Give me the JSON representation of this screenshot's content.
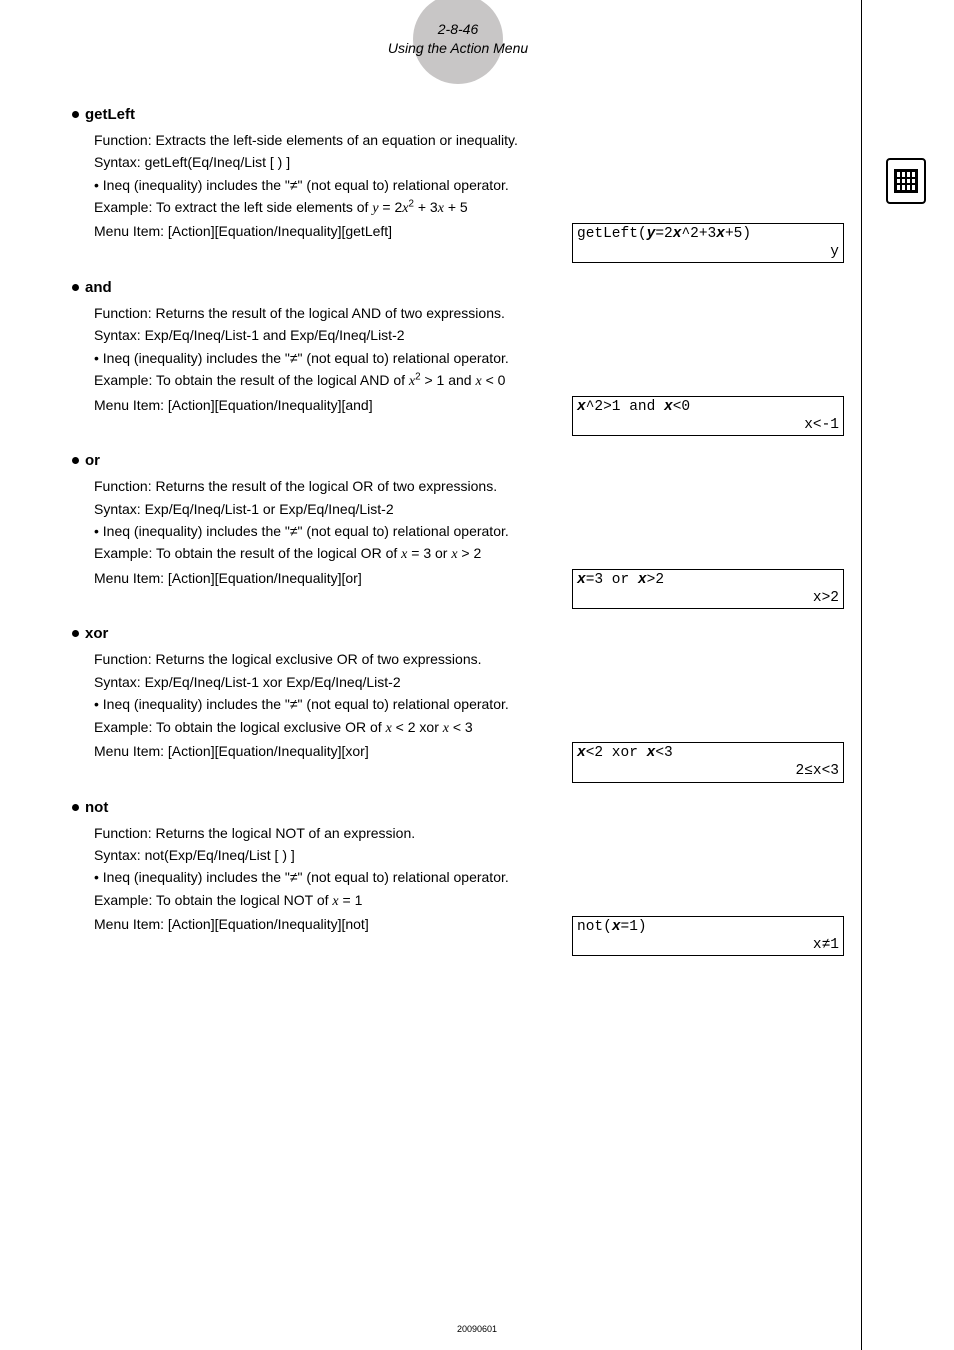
{
  "header": {
    "page_ref": "2-8-46",
    "subtitle": "Using the Action Menu"
  },
  "sections": [
    {
      "name": "getLeft",
      "function_line": "Function: Extracts the left-side elements of an equation or inequality.",
      "syntax_line": "Syntax: getLeft(Eq/Ineq/List [ ) ]",
      "note_line": "• Ineq (inequality) includes the \"≠\" (not equal to) relational operator.",
      "example_html": "Example: To extract the left side elements of <span class='italic'>y</span> = 2<span class='italic'>x</span><span class='sup'>2</span> + 3<span class='italic'>x</span> + 5",
      "menu_line": "Menu Item: [Action][Equation/Inequality][getLeft]",
      "calc_input_html": "getLeft(<span class='bold-x'>y</span>=2<span class='bold-x'>x</span>^2+3<span class='bold-x'>x</span>+5)",
      "calc_output": "y"
    },
    {
      "name": "and",
      "function_line": "Function: Returns the result of the logical AND of two expressions.",
      "syntax_line": "Syntax: Exp/Eq/Ineq/List-1 and Exp/Eq/Ineq/List-2",
      "note_line": "• Ineq (inequality) includes the \"≠\" (not equal to) relational operator.",
      "example_html": "Example: To obtain the result of the logical AND of <span class='italic'>x</span><span class='sup'>2</span> > 1 and <span class='italic'>x</span> < 0",
      "menu_line": "Menu Item: [Action][Equation/Inequality][and]",
      "calc_input_html": "<span class='bold-x'>x</span>^2&gt;1 and <span class='bold-x'>x</span>&lt;0",
      "calc_output": "x<-1"
    },
    {
      "name": "or",
      "function_line": "Function: Returns the result of the logical OR of two expressions.",
      "syntax_line": "Syntax: Exp/Eq/Ineq/List-1 or Exp/Eq/Ineq/List-2",
      "note_line": "• Ineq (inequality) includes the \"≠\" (not equal to) relational operator.",
      "example_html": "Example: To obtain the result of the logical OR of <span class='italic'>x</span> = 3 or <span class='italic'>x</span> > 2",
      "menu_line": "Menu Item:  [Action][Equation/Inequality][or]",
      "calc_input_html": "<span class='bold-x'>x</span>=3 or <span class='bold-x'>x</span>&gt;2",
      "calc_output": "x>2"
    },
    {
      "name": "xor",
      "function_line": "Function: Returns the logical exclusive OR of two expressions.",
      "syntax_line": "Syntax: Exp/Eq/Ineq/List-1 xor Exp/Eq/Ineq/List-2",
      "note_line": "• Ineq (inequality) includes the \"≠\" (not equal to) relational operator.",
      "example_html": "Example: To obtain the logical exclusive OR of <span class='italic'>x</span> < 2 xor <span class='italic'>x</span> < 3",
      "menu_line": "Menu Item: [Action][Equation/Inequality][xor]",
      "calc_input_html": "<span class='bold-x'>x</span>&lt;2 xor <span class='bold-x'>x</span>&lt;3",
      "calc_output": "2≤x<3"
    },
    {
      "name": "not",
      "function_line": "Function: Returns the logical NOT of an expression.",
      "syntax_line": "Syntax: not(Exp/Eq/Ineq/List [ ) ]",
      "note_line": "• Ineq (inequality) includes the \"≠\" (not equal to) relational operator.",
      "example_html": "Example: To obtain the logical NOT of <span class='italic'>x</span> = 1",
      "menu_line": "Menu Item: [Action][Equation/Inequality][not]",
      "calc_input_html": "not(<span class='bold-x'>x</span>=1)",
      "calc_output": "x≠1"
    }
  ],
  "footer_date": "20090601"
}
